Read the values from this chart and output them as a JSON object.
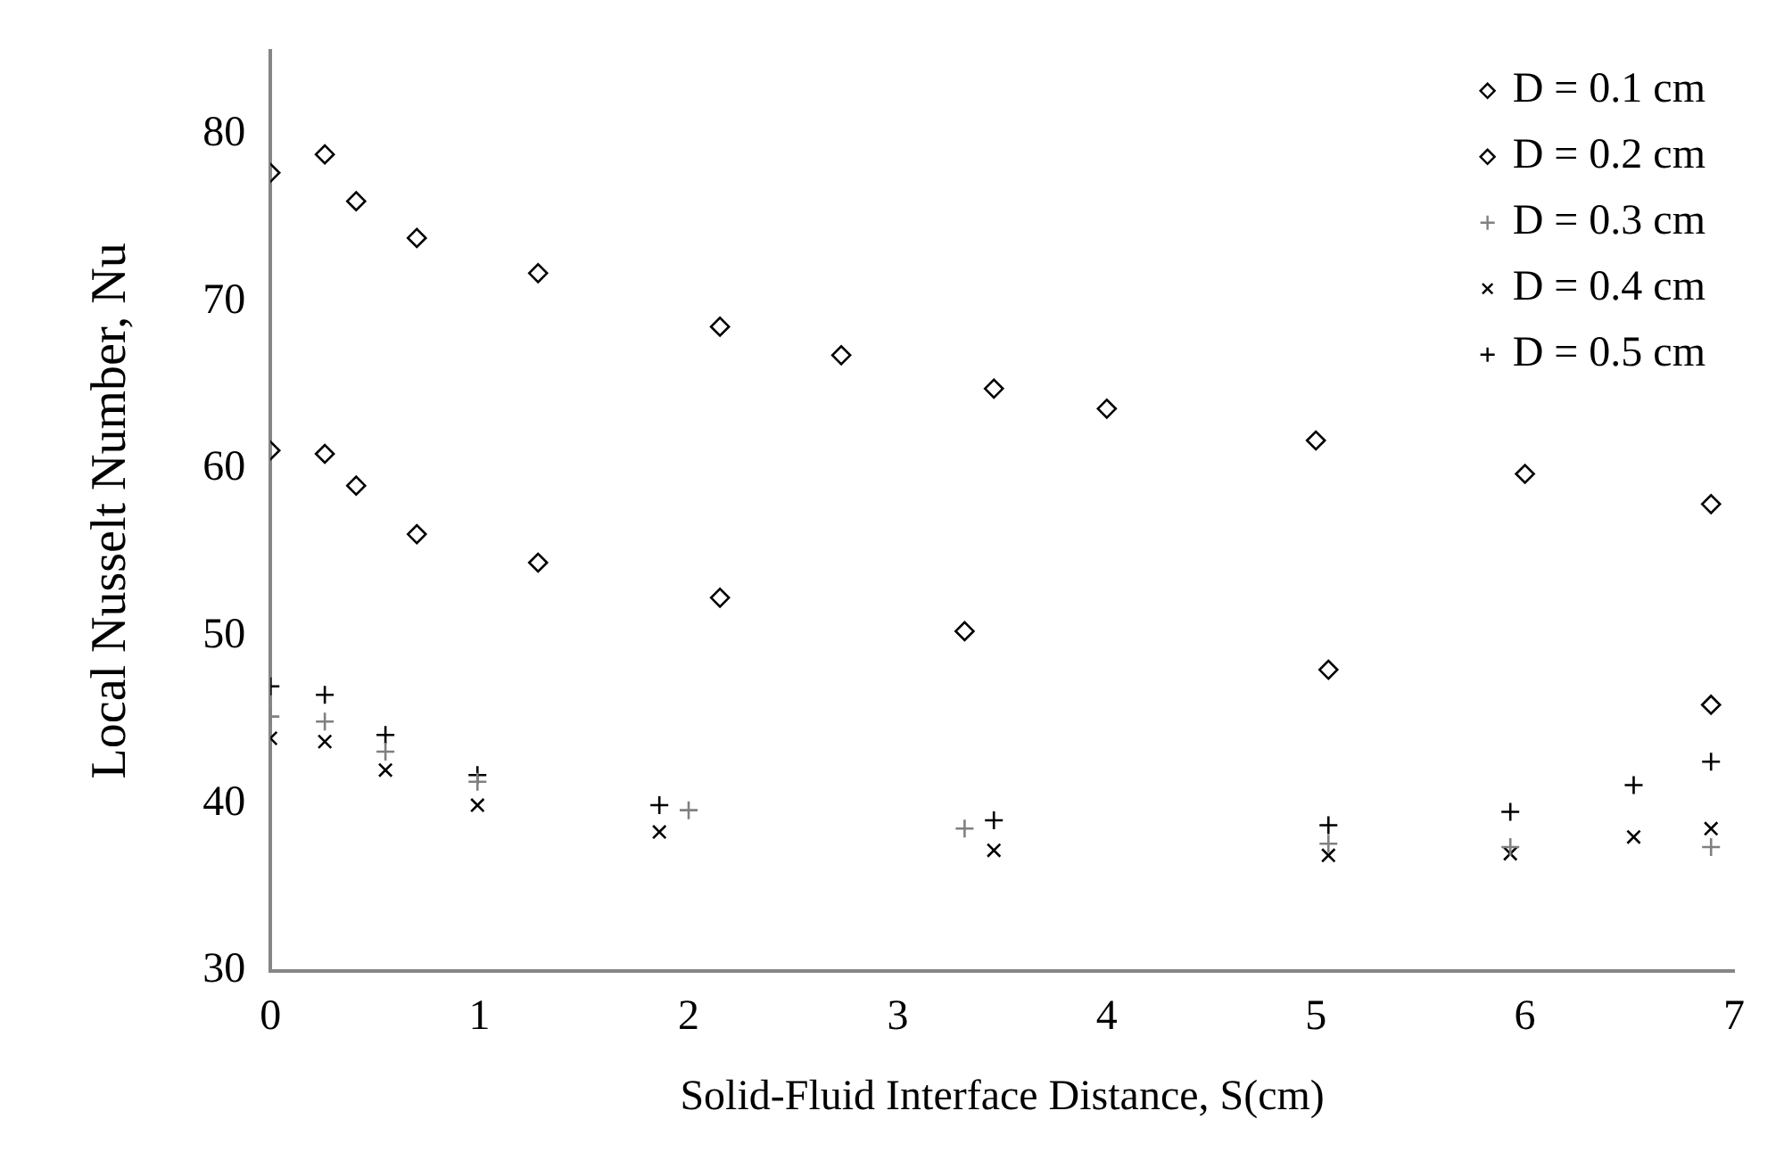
{
  "chart_data": {
    "type": "scatter",
    "xlabel": "Solid-Fluid Interface Distance, S(cm)",
    "ylabel": "Local Nusselt Number, Nu",
    "xlim": [
      0,
      7
    ],
    "xticks": [
      0,
      1,
      2,
      3,
      4,
      5,
      6,
      7
    ],
    "ylim": [
      30,
      85
    ],
    "yticks": [
      30,
      40,
      50,
      60,
      70,
      80
    ],
    "grid": false,
    "legend": "top right",
    "series": [
      {
        "name": "D = 0.1 cm",
        "color": "#000000",
        "marker": "diamond",
        "x": [
          0,
          0.26,
          0.41,
          0.7,
          1.28,
          2.15,
          2.73,
          3.46,
          4,
          5,
          6,
          6.89
        ],
        "values": [
          77.7,
          78.8,
          76.0,
          73.8,
          71.7,
          68.5,
          66.8,
          64.8,
          63.6,
          61.7,
          59.7,
          57.9
        ]
      },
      {
        "name": "D = 0.2 cm",
        "color": "#000000",
        "marker": "diamond",
        "x": [
          0,
          0.26,
          0.41,
          0.7,
          1.28,
          2.15,
          3.32,
          5.06,
          6.89
        ],
        "values": [
          61.1,
          60.9,
          59.0,
          56.1,
          54.4,
          52.3,
          50.3,
          48.0,
          45.9
        ]
      },
      {
        "name": "D = 0.3 cm",
        "color": "#808080",
        "marker": "cross",
        "x": [
          0,
          0.26,
          0.55,
          0.99,
          2,
          3.32,
          5.06,
          5.93,
          6.89
        ],
        "values": [
          45.2,
          44.9,
          43.1,
          41.3,
          39.6,
          38.5,
          37.6,
          37.4,
          37.4
        ]
      },
      {
        "name": "D = 0.4 cm",
        "color": "#000000",
        "marker": "x",
        "x": [
          0,
          0.26,
          0.55,
          0.99,
          1.86,
          3.46,
          5.06,
          5.93,
          6.52,
          6.89
        ],
        "values": [
          43.9,
          43.7,
          42.0,
          39.9,
          38.3,
          37.2,
          36.9,
          37.0,
          38.0,
          38.5
        ]
      },
      {
        "name": "D = 0.5 cm",
        "color": "#000000",
        "marker": "cross",
        "x": [
          0,
          0.26,
          0.55,
          0.99,
          1.86,
          3.46,
          5.06,
          5.93,
          6.52,
          6.89
        ],
        "values": [
          47.0,
          46.5,
          44.1,
          41.7,
          39.9,
          39.0,
          38.7,
          39.5,
          41.1,
          42.5
        ]
      }
    ]
  }
}
